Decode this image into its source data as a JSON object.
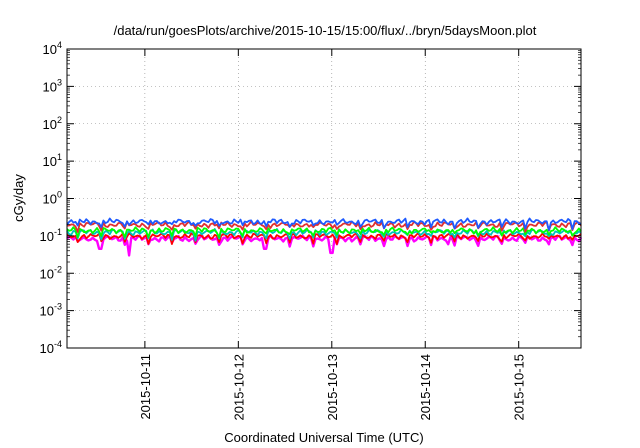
{
  "chart_data": {
    "type": "line",
    "title": "/data/run/goesPlots/archive/2015-10-15/15:00/flux/../bryn/5daysMoon.plot",
    "xlabel": "Coordinated Universal Time (UTC)",
    "ylabel": "cGy/day",
    "x_range": [
      "2015-10-10T04:00",
      "2015-10-15T16:00"
    ],
    "ylim": [
      0.0001,
      10000
    ],
    "y_scale": "log",
    "grid": true,
    "x_ticks": [
      "2015-10-11",
      "2015-10-12",
      "2015-10-13",
      "2015-10-14",
      "2015-10-15"
    ],
    "y_ticks": [
      {
        "base": "10",
        "exp": "4"
      },
      {
        "base": "10",
        "exp": "3"
      },
      {
        "base": "10",
        "exp": "2"
      },
      {
        "base": "10",
        "exp": "1"
      },
      {
        "base": "10",
        "exp": "0"
      },
      {
        "base": "10",
        "exp": "-1"
      },
      {
        "base": "10",
        "exp": "-2"
      },
      {
        "base": "10",
        "exp": "-3"
      },
      {
        "base": "10",
        "exp": "-4"
      }
    ],
    "series": [
      {
        "color": "#ff00ff",
        "base": 0.085,
        "dips": [
          [
            "2015-10-10T12:30",
            0.045
          ],
          [
            "2015-10-10T20:00",
            0.03
          ],
          [
            "2015-10-12T07:00",
            0.045
          ],
          [
            "2015-10-13T00:00",
            0.035
          ],
          [
            "2015-10-14T06:00",
            0.06
          ]
        ]
      },
      {
        "color": "#ff0000",
        "base": 0.098,
        "dips": []
      },
      {
        "color": "#00c0c0",
        "base": 0.125,
        "dips": []
      },
      {
        "color": "#00ff00",
        "base": 0.14,
        "dips": []
      },
      {
        "color": "#e03030",
        "base": 0.2,
        "dips": []
      },
      {
        "color": "#1e5aff",
        "base": 0.24,
        "dips": []
      }
    ]
  }
}
